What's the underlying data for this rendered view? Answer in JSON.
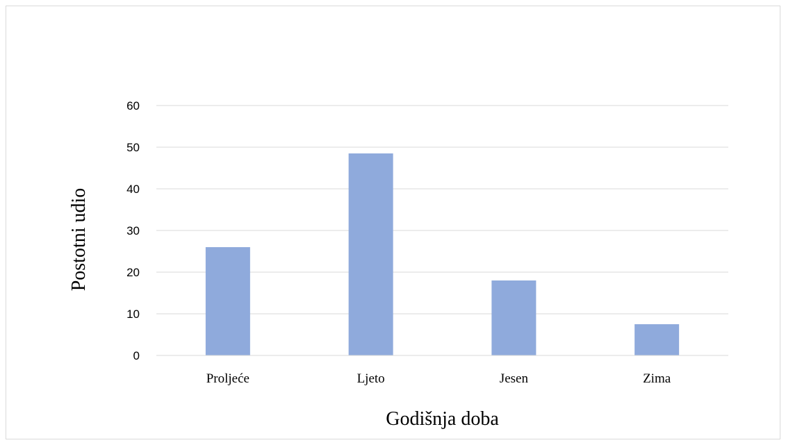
{
  "chart_data": {
    "type": "bar",
    "categories": [
      "Proljeće",
      "Ljeto",
      "Jesen",
      "Zima"
    ],
    "values": [
      26,
      48.5,
      18,
      7.5
    ],
    "title": "",
    "xlabel": "Godišnja doba",
    "ylabel": "Postotni udio",
    "ylim": [
      0,
      60
    ],
    "yticks": [
      0,
      10,
      20,
      30,
      40,
      50,
      60
    ],
    "grid": true,
    "legend": "none",
    "bar_color": "#8faadc",
    "grid_color": "#d9d9d9"
  }
}
